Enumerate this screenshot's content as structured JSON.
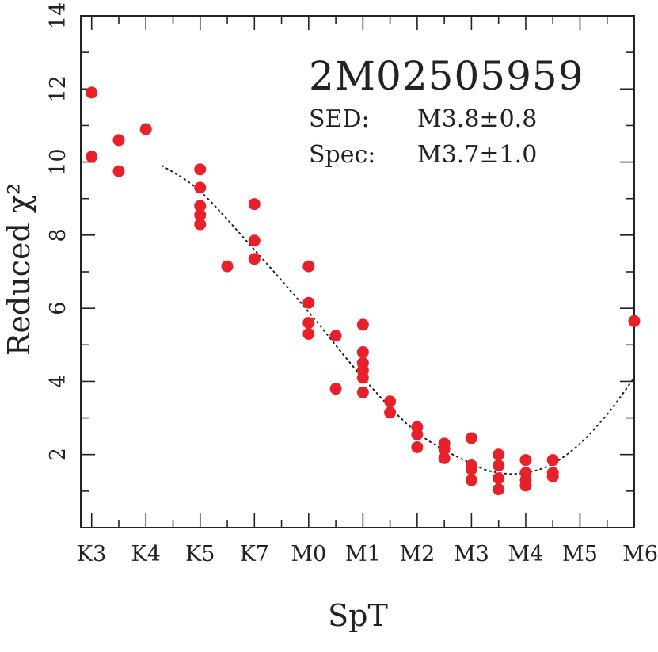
{
  "chart_data": {
    "type": "scatter",
    "xlabel": "SpT",
    "ylabel": "Reduced χ²",
    "xlim": [
      -0.2,
      10
    ],
    "ylim": [
      0,
      14
    ],
    "x_ticks": [
      {
        "pos": 0,
        "label": "K3"
      },
      {
        "pos": 1,
        "label": "K4"
      },
      {
        "pos": 2,
        "label": "K5"
      },
      {
        "pos": 3,
        "label": "K7"
      },
      {
        "pos": 4,
        "label": "M0"
      },
      {
        "pos": 5,
        "label": "M1"
      },
      {
        "pos": 6,
        "label": "M2"
      },
      {
        "pos": 7,
        "label": "M3"
      },
      {
        "pos": 8,
        "label": "M4"
      },
      {
        "pos": 9,
        "label": "M5"
      },
      {
        "pos": 10,
        "label": "M6"
      }
    ],
    "y_ticks": [
      2,
      4,
      6,
      8,
      10,
      12,
      14
    ],
    "y_minor_step": 1,
    "x_minor_step": 0.5,
    "annotation": {
      "object": "2M02505959",
      "sed_label": "SED:",
      "sed_value": "M3.8±0.8",
      "spec_label": "Spec:",
      "spec_value": "M3.7±1.0"
    },
    "series": [
      {
        "marker_color": "#e8202a",
        "points": [
          [
            0,
            11.9
          ],
          [
            0,
            10.15
          ],
          [
            0.5,
            10.6
          ],
          [
            0.5,
            9.75
          ],
          [
            1,
            10.9
          ],
          [
            2,
            9.8
          ],
          [
            2,
            9.3
          ],
          [
            2,
            8.8
          ],
          [
            2,
            8.55
          ],
          [
            2,
            8.3
          ],
          [
            2.5,
            7.15
          ],
          [
            3,
            8.85
          ],
          [
            3,
            7.85
          ],
          [
            3,
            7.35
          ],
          [
            4,
            7.15
          ],
          [
            4,
            6.15
          ],
          [
            4,
            5.6
          ],
          [
            4,
            5.3
          ],
          [
            4.5,
            5.25
          ],
          [
            4.5,
            3.8
          ],
          [
            5,
            5.55
          ],
          [
            5,
            4.8
          ],
          [
            5,
            4.5
          ],
          [
            5,
            4.3
          ],
          [
            5,
            4.1
          ],
          [
            5,
            3.7
          ],
          [
            5.5,
            3.45
          ],
          [
            5.5,
            3.15
          ],
          [
            6,
            2.75
          ],
          [
            6,
            2.55
          ],
          [
            6,
            2.2
          ],
          [
            6.5,
            2.3
          ],
          [
            6.5,
            2.15
          ],
          [
            6.5,
            1.9
          ],
          [
            7,
            2.45
          ],
          [
            7,
            1.7
          ],
          [
            7,
            1.6
          ],
          [
            7,
            1.3
          ],
          [
            7.5,
            2.0
          ],
          [
            7.5,
            1.7
          ],
          [
            7.5,
            1.35
          ],
          [
            7.5,
            1.05
          ],
          [
            8,
            1.85
          ],
          [
            8,
            1.5
          ],
          [
            8,
            1.3
          ],
          [
            8,
            1.15
          ],
          [
            8.5,
            1.85
          ],
          [
            8.5,
            1.5
          ],
          [
            8.5,
            1.4
          ],
          [
            10,
            5.65
          ]
        ]
      }
    ],
    "fit_curve": {
      "style": "dotted",
      "x": [
        1.3,
        2,
        3,
        4,
        5,
        6,
        7,
        7.5,
        8,
        8.5,
        9,
        9.5,
        10
      ],
      "y": [
        9.9,
        9.2,
        7.6,
        5.9,
        4.1,
        2.6,
        1.75,
        1.5,
        1.5,
        1.75,
        2.3,
        3.1,
        4.1
      ]
    }
  }
}
